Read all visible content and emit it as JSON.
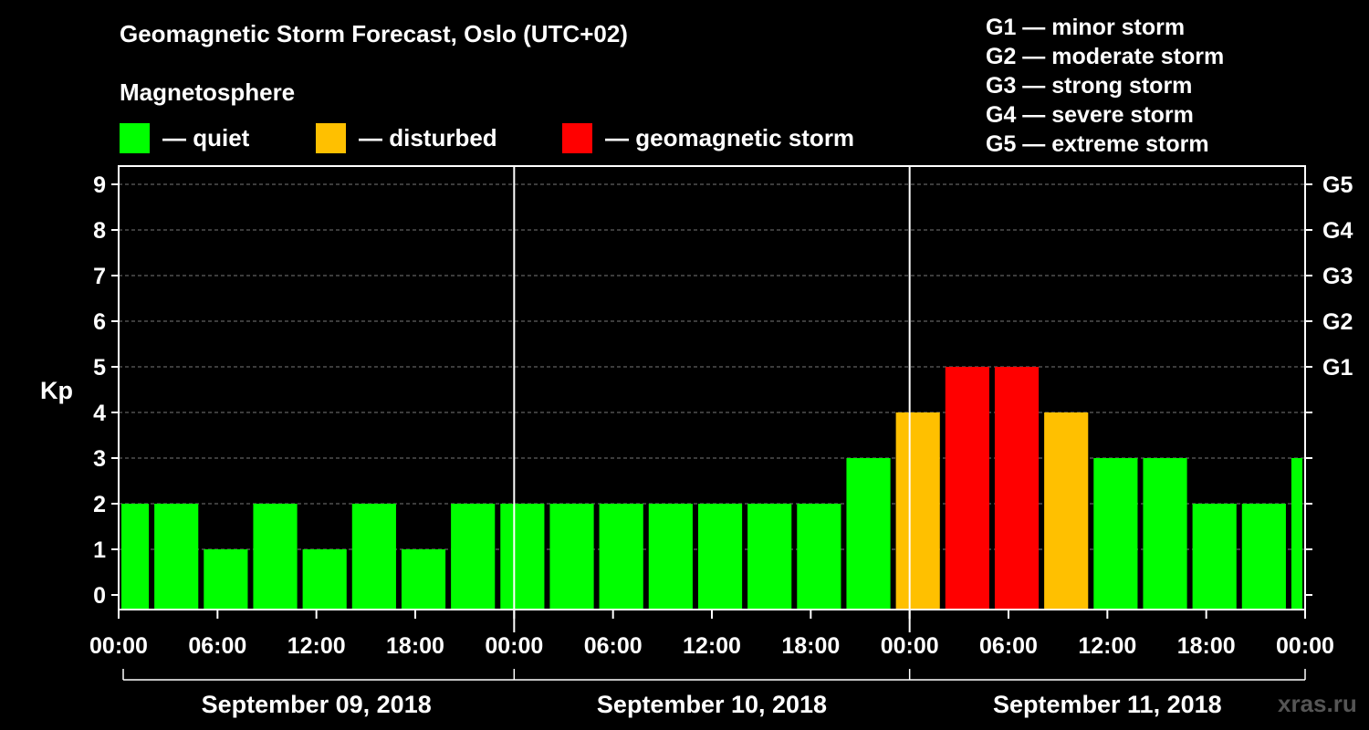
{
  "chart_data": {
    "type": "bar",
    "title": "Geomagnetic Storm Forecast, Oslo (UTC+02)",
    "subtitle": "Magnetosphere",
    "ylabel": "Kp",
    "ylim": [
      0,
      9
    ],
    "yticks": [
      "0",
      "1",
      "2",
      "3",
      "4",
      "5",
      "6",
      "7",
      "8",
      "9"
    ],
    "right_ticks": [
      {
        "kp": 5,
        "label": "G1"
      },
      {
        "kp": 6,
        "label": "G2"
      },
      {
        "kp": 7,
        "label": "G3"
      },
      {
        "kp": 8,
        "label": "G4"
      },
      {
        "kp": 9,
        "label": "G5"
      }
    ],
    "xticks": [
      "00:00",
      "06:00",
      "12:00",
      "18:00",
      "00:00",
      "06:00",
      "12:00",
      "18:00",
      "00:00",
      "06:00",
      "12:00",
      "18:00",
      "00:00"
    ],
    "xlim_hours": [
      0,
      72
    ],
    "grid": true,
    "days": [
      {
        "label": "September 09, 2018",
        "start_hour": 0,
        "end_hour": 24
      },
      {
        "label": "September 10, 2018",
        "start_hour": 24,
        "end_hour": 48
      },
      {
        "label": "September 11, 2018",
        "start_hour": 48,
        "end_hour": 72
      }
    ],
    "bars": [
      {
        "start_hour": 0,
        "end_hour": 2,
        "kp": 2,
        "level": "quiet"
      },
      {
        "start_hour": 2,
        "end_hour": 5,
        "kp": 2,
        "level": "quiet"
      },
      {
        "start_hour": 5,
        "end_hour": 8,
        "kp": 1,
        "level": "quiet"
      },
      {
        "start_hour": 8,
        "end_hour": 11,
        "kp": 2,
        "level": "quiet"
      },
      {
        "start_hour": 11,
        "end_hour": 14,
        "kp": 1,
        "level": "quiet"
      },
      {
        "start_hour": 14,
        "end_hour": 17,
        "kp": 2,
        "level": "quiet"
      },
      {
        "start_hour": 17,
        "end_hour": 20,
        "kp": 1,
        "level": "quiet"
      },
      {
        "start_hour": 20,
        "end_hour": 23,
        "kp": 2,
        "level": "quiet"
      },
      {
        "start_hour": 23,
        "end_hour": 26,
        "kp": 2,
        "level": "quiet"
      },
      {
        "start_hour": 26,
        "end_hour": 29,
        "kp": 2,
        "level": "quiet"
      },
      {
        "start_hour": 29,
        "end_hour": 32,
        "kp": 2,
        "level": "quiet"
      },
      {
        "start_hour": 32,
        "end_hour": 35,
        "kp": 2,
        "level": "quiet"
      },
      {
        "start_hour": 35,
        "end_hour": 38,
        "kp": 2,
        "level": "quiet"
      },
      {
        "start_hour": 38,
        "end_hour": 41,
        "kp": 2,
        "level": "quiet"
      },
      {
        "start_hour": 41,
        "end_hour": 44,
        "kp": 2,
        "level": "quiet"
      },
      {
        "start_hour": 44,
        "end_hour": 47,
        "kp": 3,
        "level": "quiet"
      },
      {
        "start_hour": 47,
        "end_hour": 50,
        "kp": 4,
        "level": "disturbed"
      },
      {
        "start_hour": 50,
        "end_hour": 53,
        "kp": 5,
        "level": "storm"
      },
      {
        "start_hour": 53,
        "end_hour": 56,
        "kp": 5,
        "level": "storm"
      },
      {
        "start_hour": 56,
        "end_hour": 59,
        "kp": 4,
        "level": "disturbed"
      },
      {
        "start_hour": 59,
        "end_hour": 62,
        "kp": 3,
        "level": "quiet"
      },
      {
        "start_hour": 62,
        "end_hour": 65,
        "kp": 3,
        "level": "quiet"
      },
      {
        "start_hour": 65,
        "end_hour": 68,
        "kp": 2,
        "level": "quiet"
      },
      {
        "start_hour": 68,
        "end_hour": 71,
        "kp": 2,
        "level": "quiet"
      },
      {
        "start_hour": 71,
        "end_hour": 72,
        "kp": 3,
        "level": "quiet"
      }
    ]
  },
  "legend": {
    "quiet": {
      "label": "— quiet",
      "color": "#00ff00"
    },
    "disturbed": {
      "label": "— disturbed",
      "color": "#ffc000"
    },
    "storm": {
      "label": "— geomagnetic storm",
      "color": "#ff0000"
    }
  },
  "g_scale": [
    "G1 — minor storm",
    "G2 — moderate storm",
    "G3 — strong storm",
    "G4 — severe storm",
    "G5 — extreme storm"
  ],
  "watermark": "xras.ru"
}
